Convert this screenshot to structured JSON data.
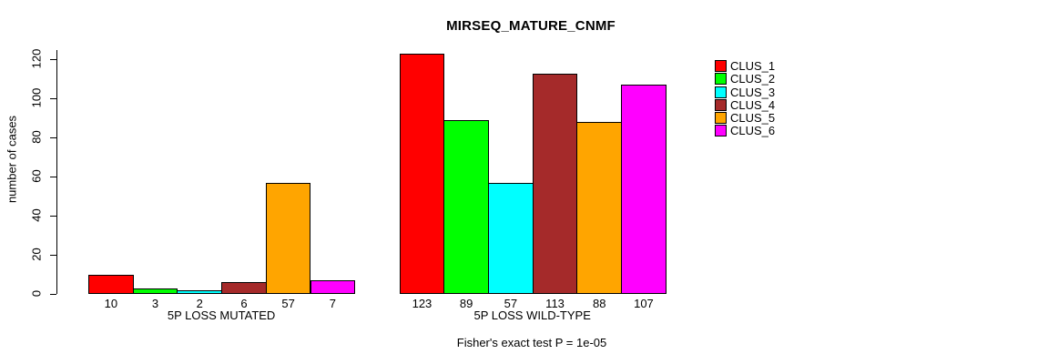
{
  "chart_data": {
    "type": "bar",
    "title": "MIRSEQ_MATURE_CNMF",
    "ylabel": "number of cases",
    "xlabel": "",
    "ylim": [
      0,
      120
    ],
    "yticks": [
      0,
      20,
      40,
      60,
      80,
      100,
      120
    ],
    "grid": false,
    "legend_position": "right-top",
    "categories": [
      "5P LOSS MUTATED",
      "5P LOSS WILD-TYPE"
    ],
    "series": [
      {
        "name": "CLUS_1",
        "color": "#FF0000",
        "values": [
          10,
          123
        ]
      },
      {
        "name": "CLUS_2",
        "color": "#00FF00",
        "values": [
          3,
          89
        ]
      },
      {
        "name": "CLUS_3",
        "color": "#00FFFF",
        "values": [
          2,
          57
        ]
      },
      {
        "name": "CLUS_4",
        "color": "#A52A2A",
        "values": [
          6,
          113
        ]
      },
      {
        "name": "CLUS_5",
        "color": "#FFA500",
        "values": [
          57,
          88
        ]
      },
      {
        "name": "CLUS_6",
        "color": "#FF00FF",
        "values": [
          7,
          107
        ]
      }
    ],
    "bar_value_labels": [
      [
        "10",
        "3",
        "2",
        "6",
        "57",
        "7"
      ],
      [
        "123",
        "89",
        "57",
        "113",
        "88",
        "107"
      ]
    ],
    "annotation": "Fisher's exact test P = 1e-05"
  }
}
